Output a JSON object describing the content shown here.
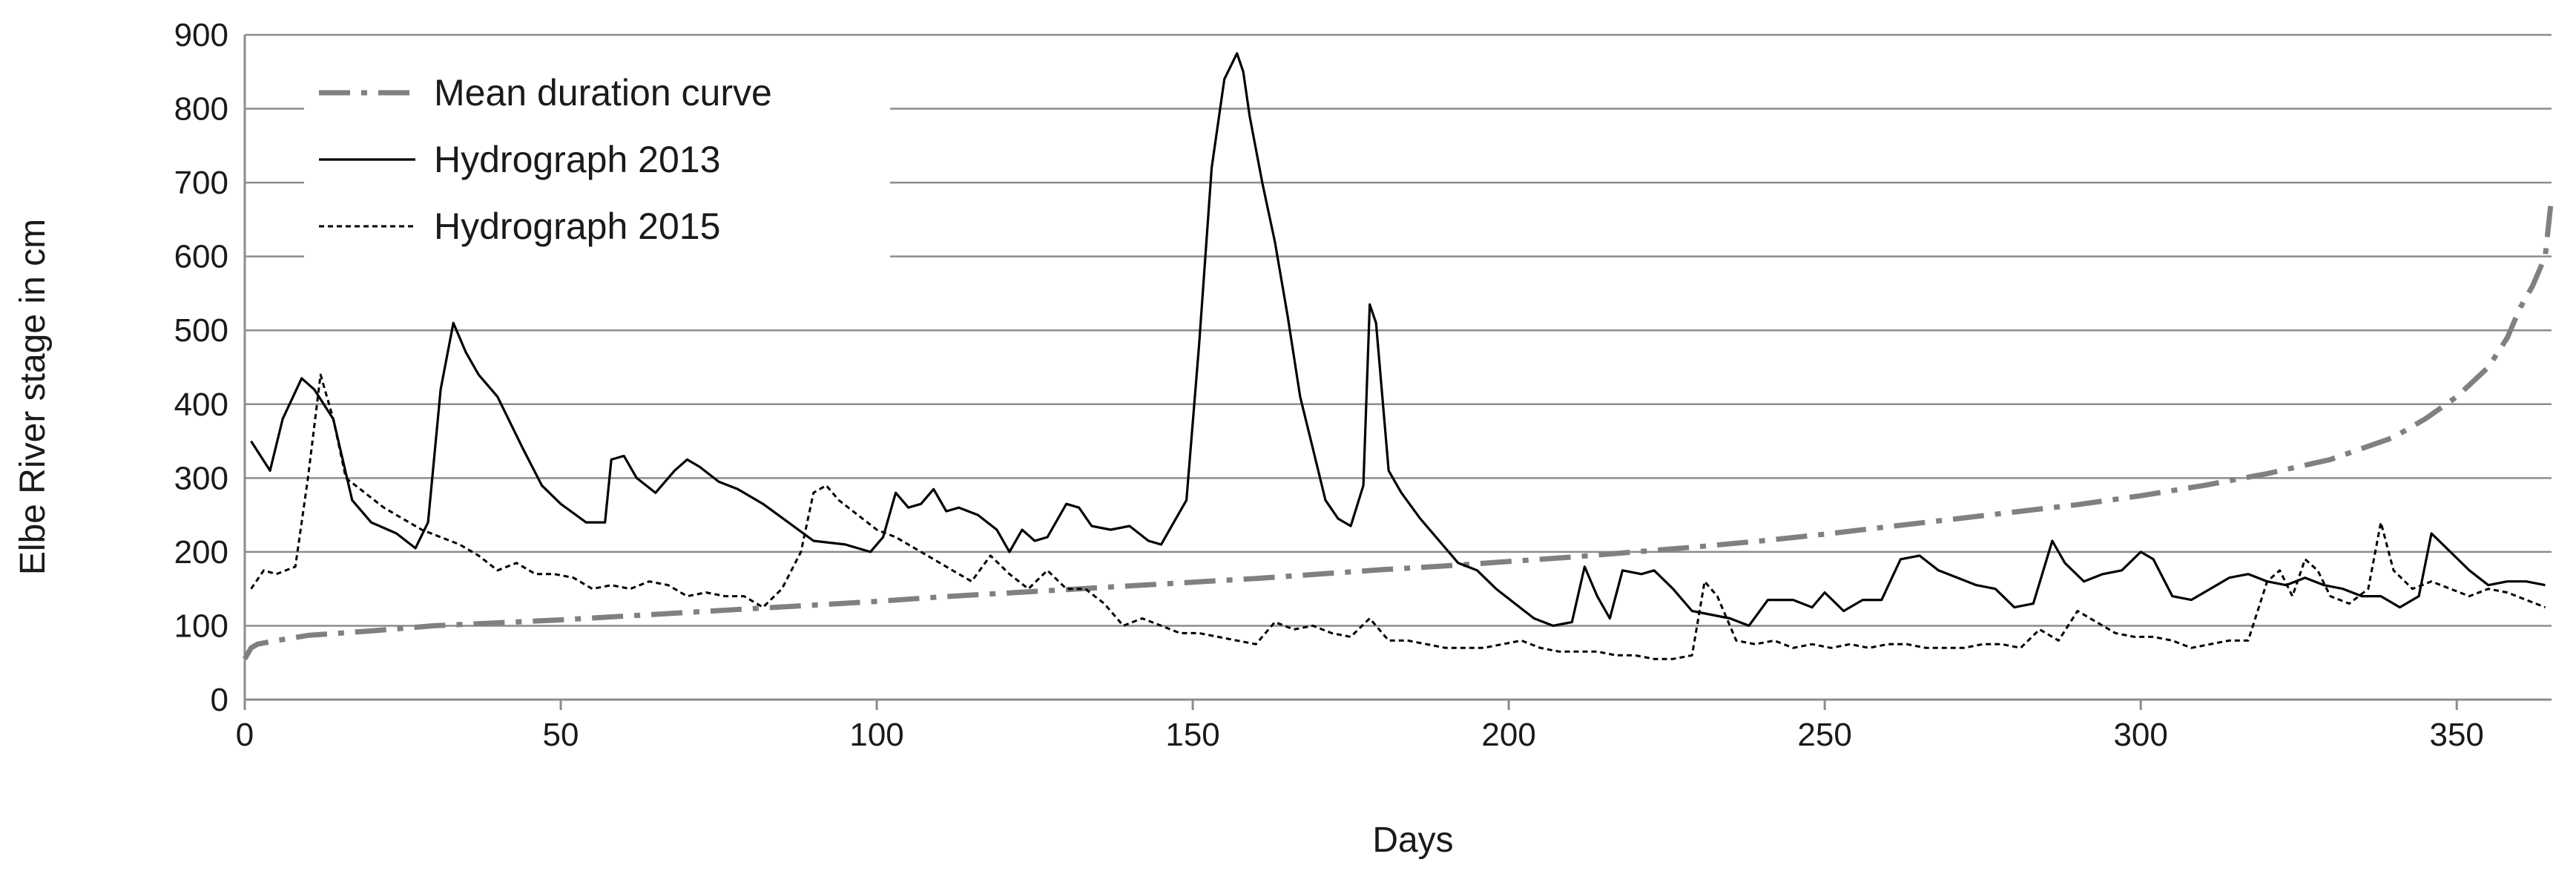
{
  "chart_data": {
    "type": "line",
    "title": "",
    "xlabel": "Days",
    "ylabel": "Elbe River stage in cm",
    "xlim": [
      0,
      365
    ],
    "ylim": [
      0,
      900
    ],
    "xticks": [
      0,
      50,
      100,
      150,
      200,
      250,
      300,
      350
    ],
    "yticks": [
      0,
      100,
      200,
      300,
      400,
      500,
      600,
      700,
      800,
      900
    ],
    "grid": "horizontal",
    "legend_position": "top-left",
    "series": [
      {
        "name": "Mean duration curve",
        "style": "dash-dot",
        "color": "#808080",
        "x": [
          0,
          1,
          2,
          5,
          10,
          20,
          30,
          40,
          50,
          60,
          70,
          80,
          90,
          100,
          110,
          120,
          130,
          140,
          150,
          160,
          170,
          180,
          190,
          200,
          210,
          220,
          230,
          240,
          250,
          260,
          270,
          280,
          290,
          300,
          310,
          320,
          330,
          340,
          345,
          350,
          355,
          358,
          360,
          362,
          364,
          365
        ],
        "y": [
          55,
          70,
          75,
          80,
          87,
          93,
          100,
          104,
          108,
          113,
          118,
          123,
          128,
          133,
          139,
          144,
          149,
          154,
          159,
          164,
          170,
          176,
          181,
          187,
          193,
          200,
          207,
          215,
          224,
          234,
          244,
          254,
          264,
          276,
          290,
          306,
          325,
          355,
          380,
          410,
          450,
          490,
          530,
          560,
          600,
          680
        ]
      },
      {
        "name": "Hydrograph 2013",
        "style": "solid",
        "color": "#000000",
        "x": [
          1,
          4,
          6,
          9,
          11,
          14,
          17,
          20,
          24,
          27,
          29,
          31,
          33,
          35,
          37,
          40,
          44,
          47,
          50,
          54,
          57,
          58,
          60,
          62,
          65,
          68,
          70,
          72,
          75,
          78,
          82,
          86,
          90,
          95,
          99,
          101,
          103,
          105,
          107,
          109,
          111,
          113,
          116,
          119,
          121,
          123,
          125,
          127,
          130,
          132,
          134,
          137,
          140,
          143,
          145,
          147,
          149,
          151,
          153,
          155,
          157,
          158,
          159,
          161,
          163,
          165,
          167,
          169,
          171,
          173,
          175,
          177,
          178,
          179,
          181,
          183,
          186,
          189,
          192,
          195,
          198,
          201,
          204,
          207,
          210,
          212,
          214,
          216,
          218,
          221,
          223,
          226,
          229,
          232,
          235,
          238,
          241,
          245,
          248,
          250,
          253,
          256,
          259,
          262,
          265,
          268,
          271,
          274,
          277,
          280,
          283,
          286,
          288,
          291,
          294,
          297,
          300,
          302,
          305,
          308,
          311,
          314,
          317,
          320,
          323,
          326,
          329,
          332,
          335,
          338,
          341,
          344,
          346,
          349,
          352,
          355,
          358,
          361,
          364
        ],
        "y": [
          350,
          310,
          380,
          435,
          420,
          380,
          270,
          240,
          225,
          205,
          240,
          420,
          510,
          470,
          440,
          410,
          340,
          290,
          265,
          240,
          240,
          325,
          330,
          300,
          280,
          310,
          325,
          315,
          295,
          285,
          265,
          240,
          215,
          210,
          200,
          220,
          280,
          260,
          265,
          285,
          255,
          260,
          250,
          230,
          200,
          230,
          215,
          220,
          265,
          260,
          235,
          230,
          235,
          215,
          210,
          240,
          270,
          480,
          720,
          840,
          875,
          850,
          790,
          700,
          620,
          520,
          410,
          340,
          270,
          245,
          235,
          290,
          535,
          510,
          310,
          280,
          245,
          215,
          185,
          175,
          150,
          130,
          110,
          100,
          105,
          180,
          140,
          110,
          175,
          170,
          175,
          150,
          120,
          115,
          110,
          100,
          135,
          135,
          125,
          145,
          120,
          135,
          135,
          190,
          195,
          175,
          165,
          155,
          150,
          125,
          130,
          215,
          185,
          160,
          170,
          175,
          200,
          190,
          140,
          135,
          150,
          165,
          170,
          160,
          155,
          165,
          155,
          150,
          140,
          140,
          125,
          140,
          225,
          200,
          175,
          155,
          160,
          160,
          155
        ]
      },
      {
        "name": "Hydrograph 2015",
        "style": "dotted",
        "color": "#000000",
        "x": [
          1,
          3,
          5,
          8,
          10,
          12,
          14,
          16,
          19,
          22,
          25,
          28,
          31,
          34,
          37,
          40,
          43,
          46,
          49,
          52,
          55,
          58,
          61,
          64,
          67,
          70,
          73,
          76,
          79,
          82,
          85,
          88,
          90,
          92,
          94,
          97,
          100,
          103,
          106,
          109,
          112,
          115,
          118,
          121,
          124,
          127,
          130,
          133,
          136,
          139,
          142,
          145,
          148,
          151,
          154,
          157,
          160,
          163,
          166,
          169,
          172,
          175,
          178,
          181,
          184,
          187,
          190,
          193,
          196,
          199,
          202,
          205,
          208,
          211,
          214,
          217,
          220,
          223,
          226,
          229,
          231,
          233,
          236,
          239,
          242,
          245,
          248,
          251,
          254,
          257,
          260,
          263,
          266,
          269,
          272,
          275,
          278,
          281,
          284,
          287,
          290,
          293,
          296,
          299,
          302,
          305,
          308,
          311,
          314,
          317,
          320,
          322,
          324,
          326,
          328,
          330,
          333,
          336,
          338,
          340,
          343,
          346,
          349,
          352,
          355,
          358,
          361,
          364
        ],
        "y": [
          150,
          175,
          170,
          180,
          300,
          440,
          380,
          300,
          280,
          260,
          245,
          230,
          220,
          210,
          195,
          175,
          185,
          170,
          170,
          165,
          150,
          155,
          150,
          160,
          155,
          140,
          145,
          140,
          140,
          125,
          150,
          200,
          280,
          290,
          270,
          250,
          230,
          220,
          205,
          190,
          175,
          160,
          195,
          170,
          150,
          175,
          150,
          150,
          130,
          100,
          110,
          100,
          90,
          90,
          85,
          80,
          75,
          105,
          95,
          100,
          90,
          85,
          110,
          80,
          80,
          75,
          70,
          70,
          70,
          75,
          80,
          70,
          65,
          65,
          65,
          60,
          60,
          55,
          55,
          60,
          160,
          140,
          80,
          75,
          80,
          70,
          75,
          70,
          75,
          70,
          75,
          75,
          70,
          70,
          70,
          75,
          75,
          70,
          95,
          80,
          120,
          105,
          90,
          85,
          85,
          80,
          70,
          75,
          80,
          80,
          160,
          175,
          140,
          190,
          175,
          140,
          130,
          150,
          240,
          175,
          150,
          160,
          150,
          140,
          150,
          145,
          135,
          125
        ]
      }
    ]
  }
}
